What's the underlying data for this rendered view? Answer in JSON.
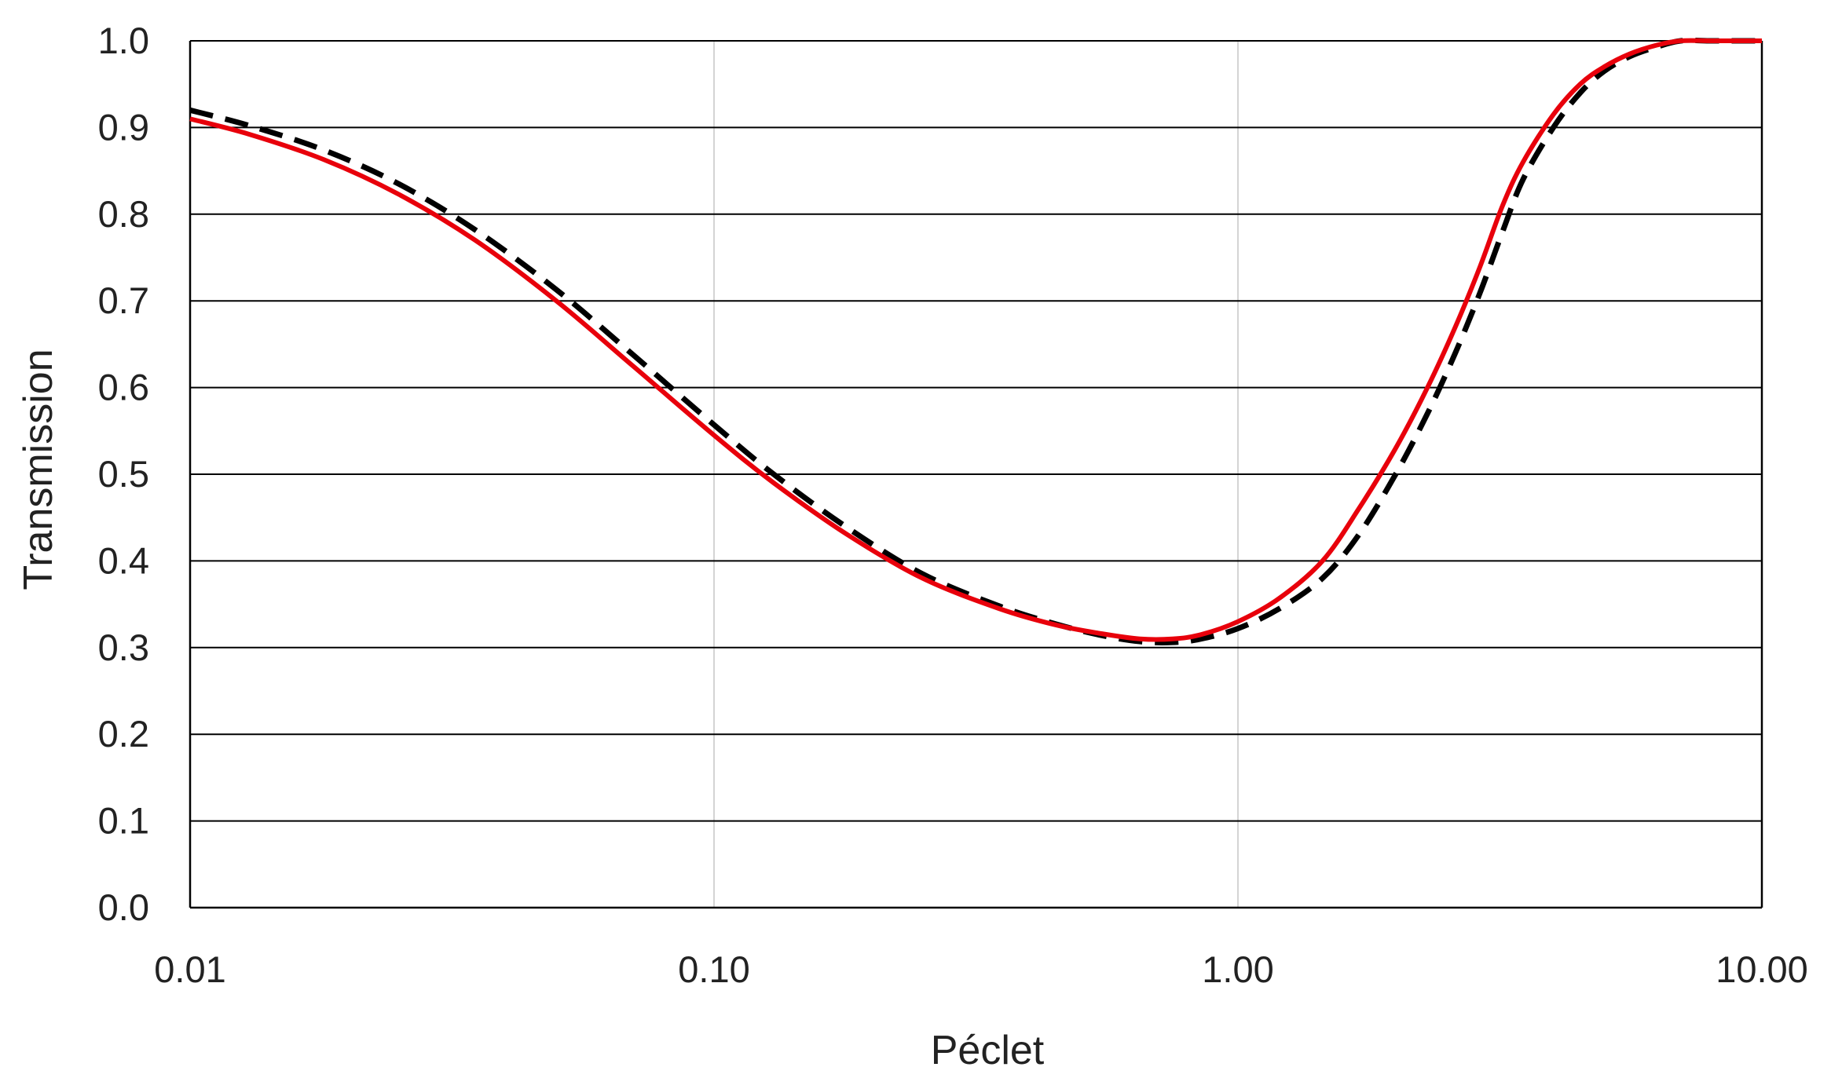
{
  "chart_data": {
    "type": "line",
    "title": "",
    "xlabel": "Péclet",
    "ylabel": "Transmission",
    "x_scale": "log",
    "xlim": [
      0.01,
      10
    ],
    "ylim": [
      0,
      1
    ],
    "x_ticks": [
      0.01,
      0.1,
      1,
      10
    ],
    "x_tick_labels": [
      "0.01",
      "0.10",
      "1.00",
      "10.00"
    ],
    "y_ticks": [
      0,
      0.1,
      0.2,
      0.3,
      0.4,
      0.5,
      0.6,
      0.7,
      0.8,
      0.9,
      1.0
    ],
    "y_tick_labels": [
      "0.0",
      "0.1",
      "0.2",
      "0.3",
      "0.4",
      "0.5",
      "0.6",
      "0.7",
      "0.8",
      "0.9",
      "1.0"
    ],
    "grid": {
      "horizontal": true,
      "vertical": true
    },
    "legend": "none",
    "series": [
      {
        "style": "solid",
        "color": "#e8000b",
        "x": [
          0.01,
          0.013,
          0.018,
          0.025,
          0.035,
          0.05,
          0.07,
          0.1,
          0.13,
          0.18,
          0.25,
          0.35,
          0.45,
          0.55,
          0.65,
          0.75,
          0.85,
          1.0,
          1.2,
          1.45,
          1.7,
          2.0,
          2.3,
          2.6,
          2.9,
          3.2,
          3.5,
          4.0,
          4.5,
          5.0,
          5.6,
          6.3,
          7.0,
          8.0,
          9.0,
          10.0
        ],
        "y": [
          0.91,
          0.892,
          0.863,
          0.823,
          0.77,
          0.7,
          0.625,
          0.545,
          0.49,
          0.43,
          0.38,
          0.345,
          0.326,
          0.316,
          0.31,
          0.31,
          0.315,
          0.33,
          0.357,
          0.4,
          0.46,
          0.53,
          0.6,
          0.67,
          0.74,
          0.81,
          0.86,
          0.915,
          0.95,
          0.97,
          0.985,
          0.995,
          1.0,
          1.0,
          1.0,
          1.0
        ]
      },
      {
        "style": "dashed",
        "color": "#000000",
        "x": [
          0.01,
          0.013,
          0.018,
          0.025,
          0.035,
          0.05,
          0.07,
          0.1,
          0.13,
          0.18,
          0.25,
          0.35,
          0.45,
          0.55,
          0.65,
          0.75,
          0.85,
          1.0,
          1.2,
          1.45,
          1.7,
          2.0,
          2.3,
          2.6,
          2.9,
          3.2,
          3.5,
          4.0,
          4.5,
          5.0,
          5.6,
          6.3,
          7.0,
          8.0,
          9.0,
          10.0
        ],
        "y": [
          0.92,
          0.902,
          0.874,
          0.835,
          0.782,
          0.713,
          0.638,
          0.557,
          0.5,
          0.438,
          0.385,
          0.348,
          0.327,
          0.314,
          0.307,
          0.306,
          0.31,
          0.322,
          0.345,
          0.38,
          0.43,
          0.5,
          0.57,
          0.64,
          0.71,
          0.78,
          0.84,
          0.9,
          0.94,
          0.965,
          0.982,
          0.993,
          1.0,
          1.0,
          1.0,
          1.0
        ]
      }
    ]
  }
}
